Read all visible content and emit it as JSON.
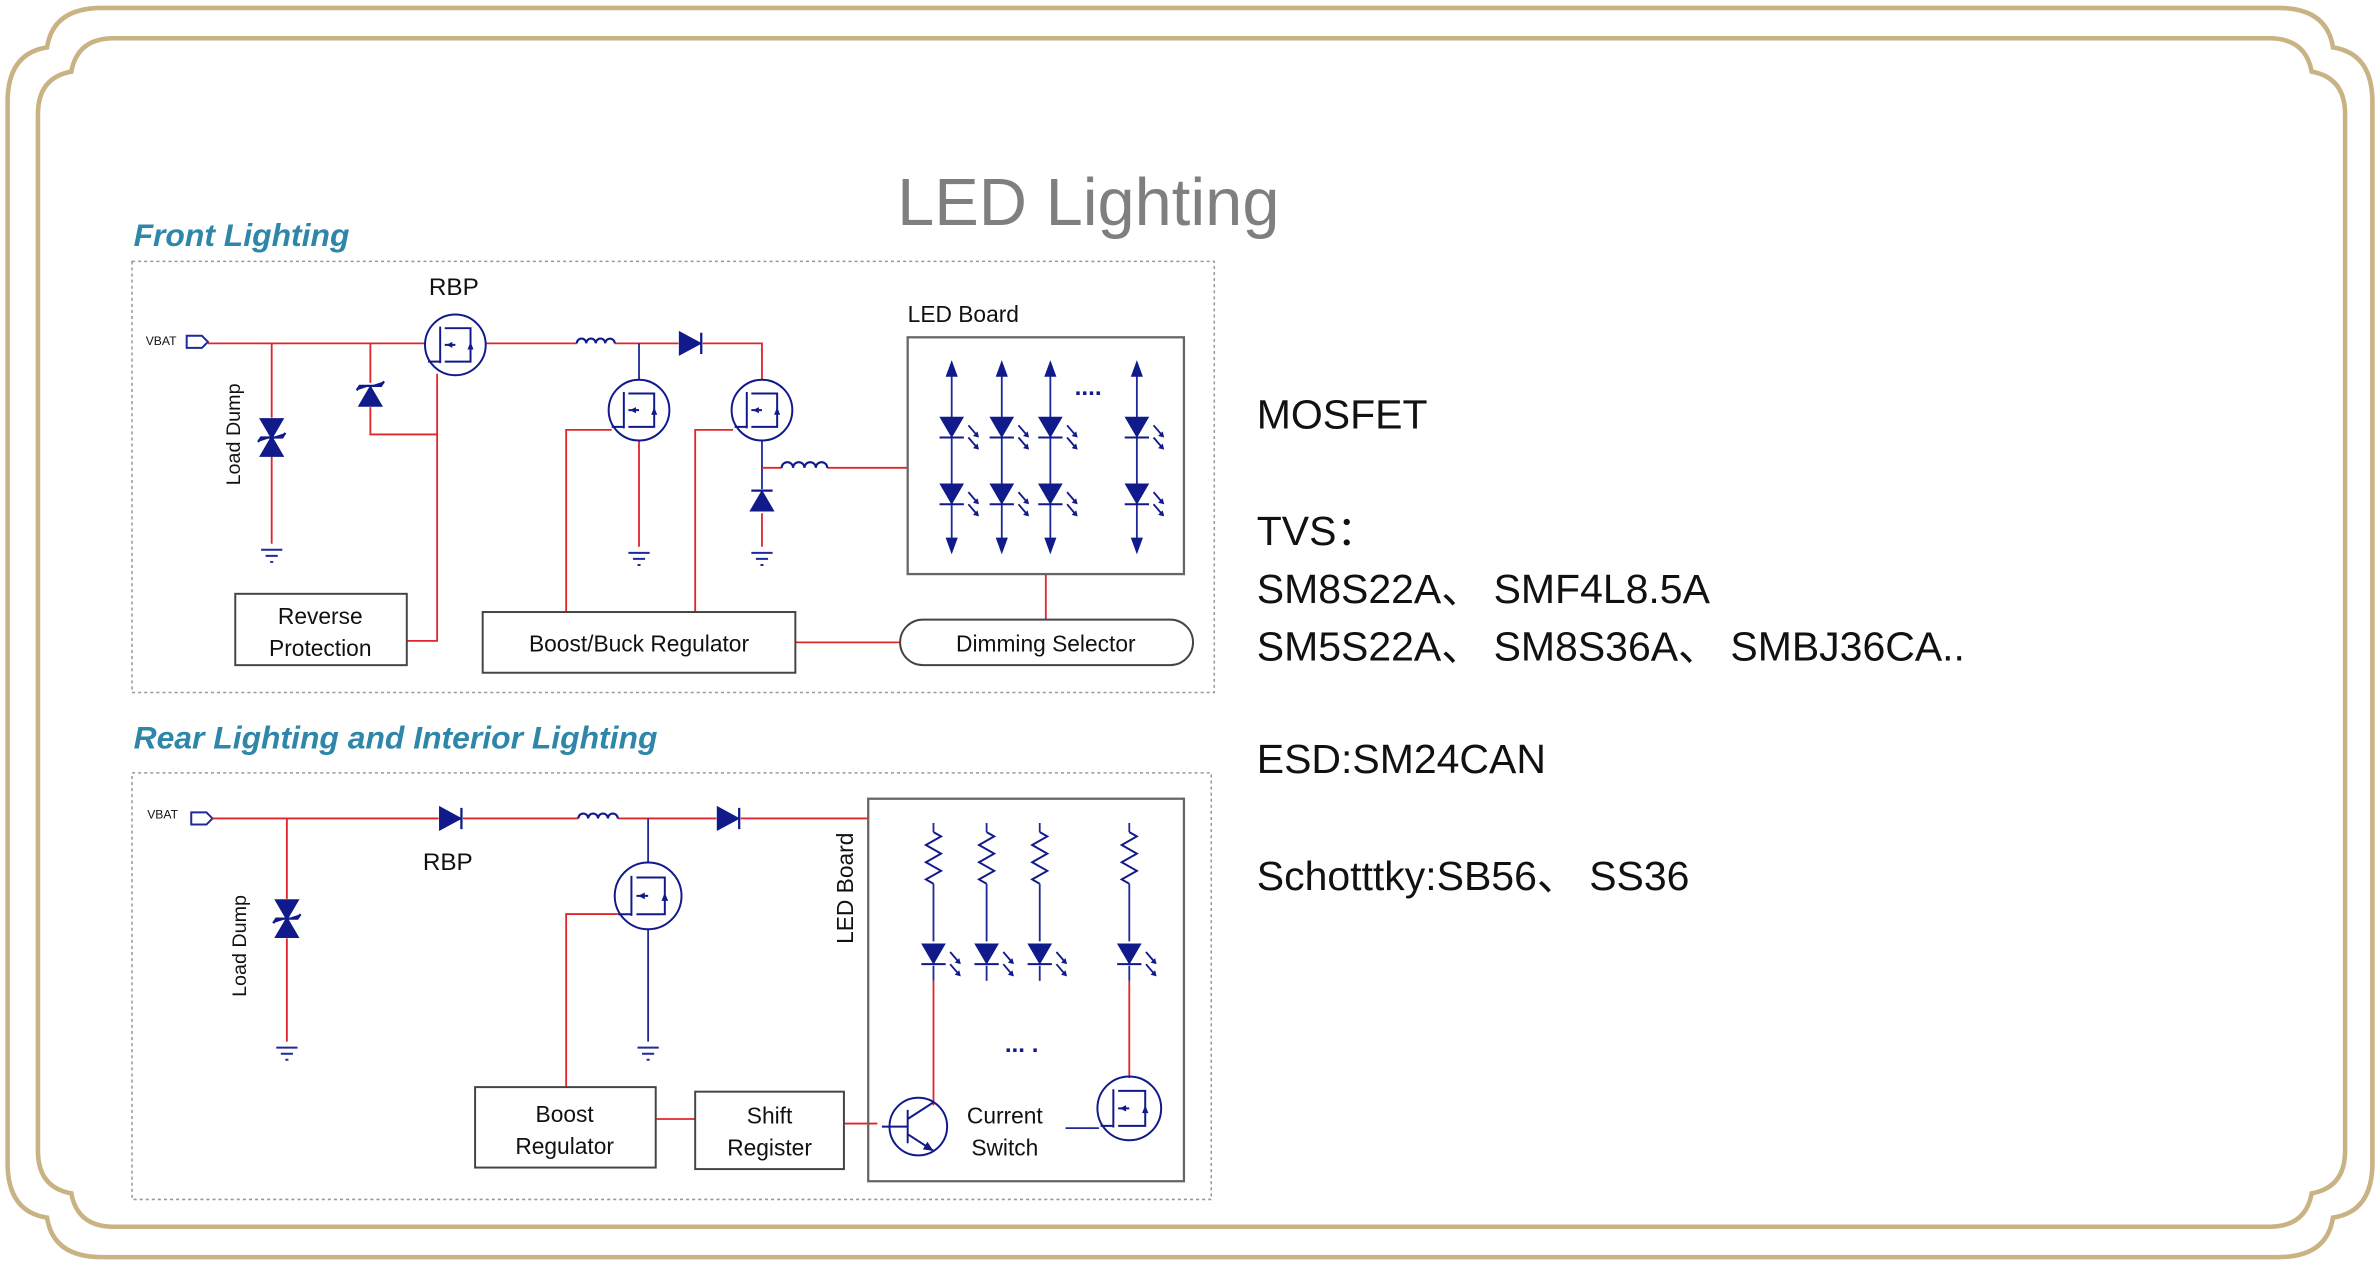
{
  "title": "LED Lighting",
  "colors": {
    "frame": "#c9b283",
    "title": "#7f7f7f",
    "section_heading": "#2e86a8",
    "wire_red": "#e0262c",
    "wire_blue": "#1f2a9a",
    "component": "#101a8a",
    "box_border": "#555555"
  },
  "front": {
    "heading": "Front Lighting",
    "vbat": "VBAT",
    "rbp": "RBP",
    "load_dump": "Load Dump",
    "led_board": "LED Board",
    "ellipsis": "....",
    "reverse_protection": [
      "Reverse",
      "Protection"
    ],
    "regulator": "Boost/Buck  Regulator",
    "dimming": "Dimming Selector"
  },
  "rear": {
    "heading": "Rear Lighting and Interior Lighting",
    "vbat": "VBAT",
    "rbp": "RBP",
    "load_dump": "Load Dump",
    "led_board": "LED Board",
    "ellipsis": "... .",
    "boost": [
      "Boost",
      "Regulator"
    ],
    "shift": [
      "Shift",
      "Register"
    ],
    "current_switch": [
      "Current",
      "Switch"
    ]
  },
  "components": [
    {
      "text": "MOSFET"
    },
    {
      "text": ""
    },
    {
      "text": "TVS："
    },
    {
      "text": "SM8S22A、 SMF4L8.5A"
    },
    {
      "text": "SM5S22A、 SM8S36A、 SMBJ36CA.."
    },
    {
      "text": ""
    },
    {
      "text": "ESD:SM24CAN"
    },
    {
      "text": ""
    },
    {
      "text": "Schotttky:SB56、 SS36"
    }
  ]
}
